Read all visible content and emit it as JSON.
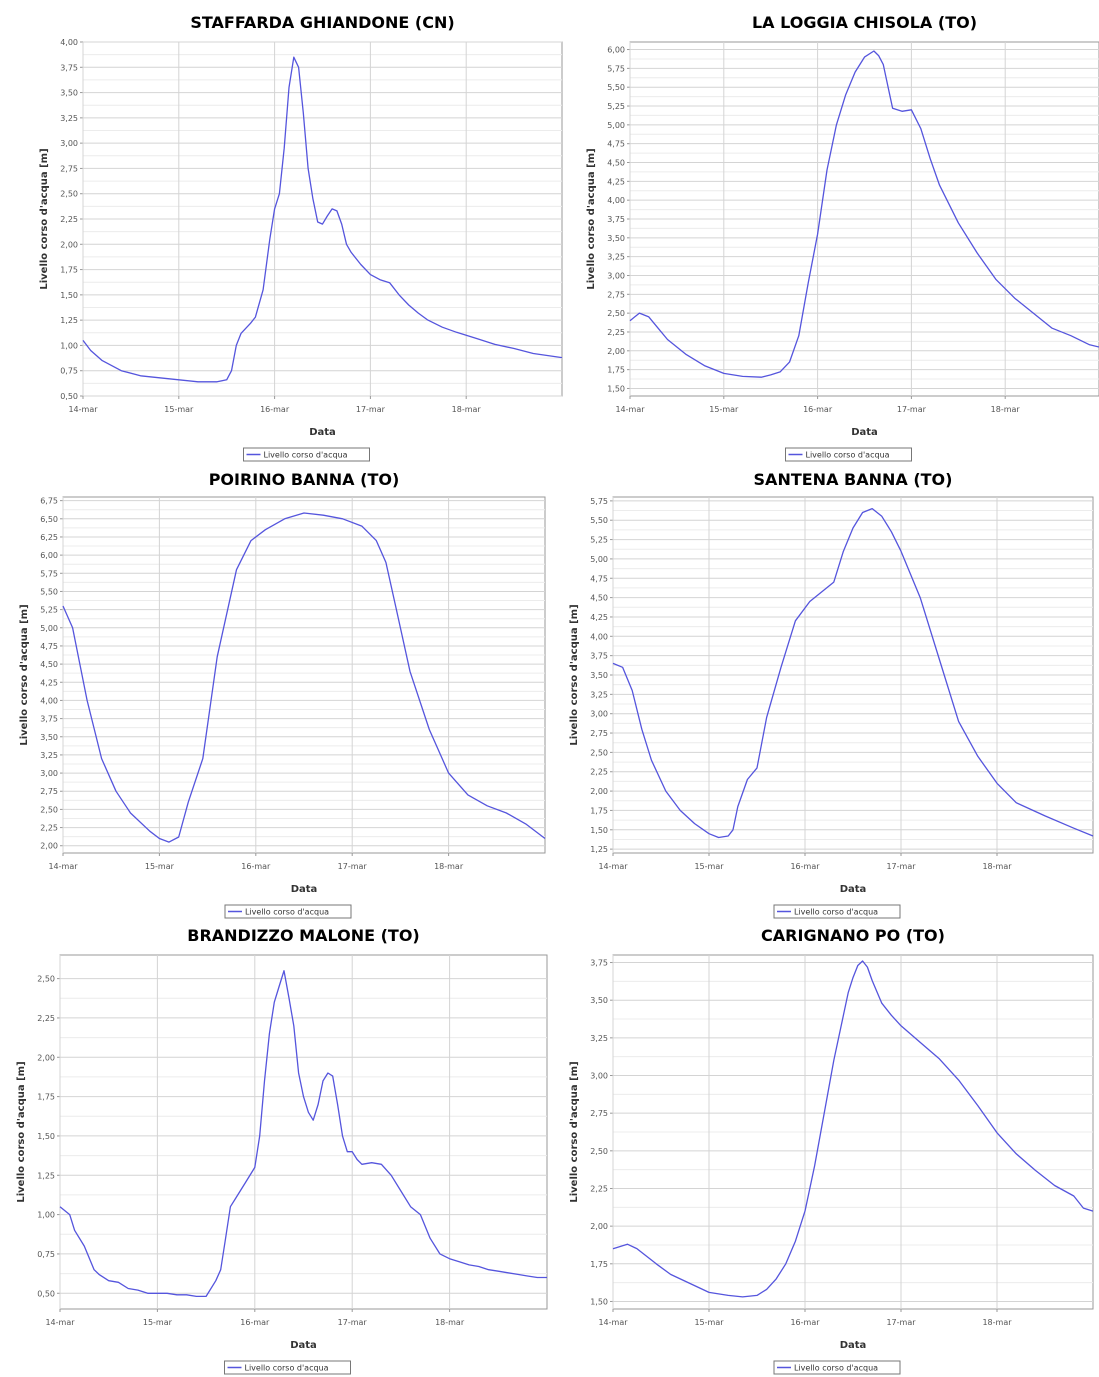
{
  "chart_data": [
    {
      "type": "line",
      "title": "STAFFARDA GHIANDONE (CN)",
      "xlabel": "Data",
      "ylabel": "Livello corso d'acqua [m]",
      "x_ticks": [
        "14-mar",
        "15-mar",
        "16-mar",
        "17-mar",
        "18-mar"
      ],
      "y_ticks": [
        "0,50",
        "0,75",
        "1,00",
        "1,25",
        "1,50",
        "1,75",
        "2,00",
        "2,25",
        "2,50",
        "2,75",
        "3,00",
        "3,25",
        "3,50",
        "3,75",
        "4,00"
      ],
      "ylim": [
        0.5,
        4.0
      ],
      "xlim": [
        0,
        5
      ],
      "grid": true,
      "legend_position": "bottom-center",
      "series": [
        {
          "name": "Livello corso d'acqua",
          "color": "#5555dd",
          "x": [
            0,
            0.08,
            0.2,
            0.4,
            0.6,
            0.8,
            1.0,
            1.2,
            1.4,
            1.5,
            1.55,
            1.6,
            1.65,
            1.75,
            1.8,
            1.88,
            1.95,
            2.0,
            2.05,
            2.1,
            2.15,
            2.2,
            2.25,
            2.3,
            2.35,
            2.4,
            2.45,
            2.5,
            2.55,
            2.6,
            2.65,
            2.7,
            2.75,
            2.8,
            2.9,
            3.0,
            3.1,
            3.2,
            3.3,
            3.4,
            3.5,
            3.6,
            3.75,
            3.9,
            4.1,
            4.3,
            4.5,
            4.7,
            5.0
          ],
          "y": [
            1.05,
            0.95,
            0.85,
            0.75,
            0.7,
            0.68,
            0.66,
            0.64,
            0.64,
            0.66,
            0.75,
            1.0,
            1.12,
            1.22,
            1.28,
            1.55,
            2.05,
            2.35,
            2.5,
            2.95,
            3.55,
            3.85,
            3.75,
            3.3,
            2.75,
            2.45,
            2.22,
            2.2,
            2.28,
            2.35,
            2.33,
            2.2,
            2.0,
            1.92,
            1.8,
            1.7,
            1.65,
            1.62,
            1.5,
            1.4,
            1.32,
            1.25,
            1.18,
            1.13,
            1.07,
            1.01,
            0.97,
            0.92,
            0.88
          ]
        }
      ]
    },
    {
      "type": "line",
      "title": "LA LOGGIA CHISOLA (TO)",
      "xlabel": "Data",
      "ylabel": "Livello corso d'acqua [m]",
      "x_ticks": [
        "14-mar",
        "15-mar",
        "16-mar",
        "17-mar",
        "18-mar"
      ],
      "y_ticks": [
        "1,50",
        "1,75",
        "2,00",
        "2,25",
        "2,50",
        "2,75",
        "3,00",
        "3,25",
        "3,50",
        "3,75",
        "4,00",
        "4,25",
        "4,50",
        "4,75",
        "5,00",
        "5,25",
        "5,50",
        "5,75",
        "6,00"
      ],
      "ylim": [
        1.4,
        6.1
      ],
      "xlim": [
        0,
        5
      ],
      "grid": true,
      "legend_position": "bottom-center",
      "series": [
        {
          "name": "Livello corso d'acqua",
          "color": "#5555dd",
          "x": [
            0,
            0.1,
            0.2,
            0.3,
            0.4,
            0.6,
            0.8,
            1.0,
            1.2,
            1.4,
            1.5,
            1.6,
            1.7,
            1.8,
            1.9,
            2.0,
            2.1,
            2.2,
            2.3,
            2.4,
            2.5,
            2.6,
            2.65,
            2.7,
            2.8,
            2.9,
            3.0,
            3.1,
            3.2,
            3.3,
            3.5,
            3.7,
            3.9,
            4.1,
            4.3,
            4.5,
            4.7,
            4.9,
            5.0
          ],
          "y": [
            2.4,
            2.5,
            2.45,
            2.3,
            2.15,
            1.95,
            1.8,
            1.7,
            1.66,
            1.65,
            1.68,
            1.72,
            1.85,
            2.2,
            2.9,
            3.55,
            4.4,
            5.0,
            5.4,
            5.7,
            5.9,
            5.98,
            5.92,
            5.8,
            5.22,
            5.18,
            5.2,
            4.95,
            4.55,
            4.2,
            3.7,
            3.3,
            2.95,
            2.7,
            2.5,
            2.3,
            2.2,
            2.08,
            2.05
          ]
        }
      ]
    },
    {
      "type": "line",
      "title": "POIRINO BANNA (TO)",
      "xlabel": "Data",
      "ylabel": "Livello corso d'acqua [m]",
      "x_ticks": [
        "14-mar",
        "15-mar",
        "16-mar",
        "17-mar",
        "18-mar"
      ],
      "y_ticks": [
        "2,00",
        "2,25",
        "2,50",
        "2,75",
        "3,00",
        "3,25",
        "3,50",
        "3,75",
        "4,00",
        "4,25",
        "4,50",
        "4,75",
        "5,00",
        "5,25",
        "5,50",
        "5,75",
        "6,00",
        "6,25",
        "6,50",
        "6,75"
      ],
      "ylim": [
        1.9,
        6.8
      ],
      "xlim": [
        0,
        5
      ],
      "grid": true,
      "legend_position": "bottom-center",
      "series": [
        {
          "name": "Livello corso d'acqua",
          "color": "#5555dd",
          "x": [
            0,
            0.1,
            0.25,
            0.4,
            0.55,
            0.7,
            0.9,
            1.0,
            1.1,
            1.2,
            1.3,
            1.45,
            1.6,
            1.8,
            1.95,
            2.1,
            2.3,
            2.5,
            2.7,
            2.9,
            3.1,
            3.25,
            3.35,
            3.45,
            3.6,
            3.8,
            4.0,
            4.2,
            4.4,
            4.6,
            4.8,
            5.0
          ],
          "y": [
            5.3,
            5.0,
            4.0,
            3.2,
            2.75,
            2.45,
            2.2,
            2.1,
            2.05,
            2.12,
            2.6,
            3.2,
            4.6,
            5.8,
            6.2,
            6.35,
            6.5,
            6.58,
            6.55,
            6.5,
            6.4,
            6.2,
            5.9,
            5.3,
            4.4,
            3.6,
            3.0,
            2.7,
            2.55,
            2.45,
            2.3,
            2.1
          ]
        }
      ]
    },
    {
      "type": "line",
      "title": "SANTENA BANNA (TO)",
      "xlabel": "Data",
      "ylabel": "Livello corso d'acqua [m]",
      "x_ticks": [
        "14-mar",
        "15-mar",
        "16-mar",
        "17-mar",
        "18-mar"
      ],
      "y_ticks": [
        "1,25",
        "1,50",
        "1,75",
        "2,00",
        "2,25",
        "2,50",
        "2,75",
        "3,00",
        "3,25",
        "3,50",
        "3,75",
        "4,00",
        "4,25",
        "4,50",
        "4,75",
        "5,00",
        "5,25",
        "5,50",
        "5,75"
      ],
      "ylim": [
        1.2,
        5.8
      ],
      "xlim": [
        0,
        5
      ],
      "grid": true,
      "legend_position": "bottom-center",
      "series": [
        {
          "name": "Livello corso d'acqua",
          "color": "#5555dd",
          "x": [
            0,
            0.1,
            0.2,
            0.3,
            0.4,
            0.55,
            0.7,
            0.85,
            1.0,
            1.1,
            1.2,
            1.25,
            1.3,
            1.4,
            1.5,
            1.6,
            1.75,
            1.9,
            2.05,
            2.2,
            2.3,
            2.4,
            2.5,
            2.6,
            2.7,
            2.8,
            2.9,
            3.0,
            3.2,
            3.4,
            3.6,
            3.8,
            4.0,
            4.2,
            4.5,
            4.8,
            5.0
          ],
          "y": [
            3.65,
            3.6,
            3.3,
            2.8,
            2.4,
            2.0,
            1.75,
            1.58,
            1.45,
            1.4,
            1.42,
            1.5,
            1.8,
            2.15,
            2.3,
            2.95,
            3.6,
            4.2,
            4.45,
            4.6,
            4.7,
            5.1,
            5.4,
            5.6,
            5.65,
            5.55,
            5.35,
            5.1,
            4.5,
            3.7,
            2.9,
            2.45,
            2.1,
            1.85,
            1.68,
            1.52,
            1.42
          ]
        }
      ]
    },
    {
      "type": "line",
      "title": "BRANDIZZO MALONE (TO)",
      "xlabel": "Data",
      "ylabel": "Livello corso d'acqua [m]",
      "x_ticks": [
        "14-mar",
        "15-mar",
        "16-mar",
        "17-mar",
        "18-mar"
      ],
      "y_ticks": [
        "0,50",
        "0,75",
        "1,00",
        "1,25",
        "1,50",
        "1,75",
        "2,00",
        "2,25",
        "2,50"
      ],
      "ylim": [
        0.4,
        2.65
      ],
      "xlim": [
        0,
        5
      ],
      "grid": true,
      "legend_position": "bottom-center",
      "series": [
        {
          "name": "Livello corso d'acqua",
          "color": "#5555dd",
          "x": [
            0,
            0.1,
            0.15,
            0.25,
            0.35,
            0.4,
            0.5,
            0.6,
            0.7,
            0.8,
            0.9,
            1.0,
            1.1,
            1.2,
            1.3,
            1.4,
            1.5,
            1.6,
            1.65,
            1.7,
            1.75,
            1.8,
            1.9,
            2.0,
            2.05,
            2.1,
            2.15,
            2.2,
            2.25,
            2.3,
            2.35,
            2.4,
            2.45,
            2.5,
            2.55,
            2.6,
            2.65,
            2.7,
            2.75,
            2.8,
            2.85,
            2.9,
            2.95,
            3.0,
            3.05,
            3.1,
            3.2,
            3.3,
            3.4,
            3.5,
            3.6,
            3.7,
            3.8,
            3.9,
            4.0,
            4.1,
            4.2,
            4.3,
            4.4,
            4.5,
            4.6,
            4.7,
            4.8,
            4.9,
            5.0
          ],
          "y": [
            1.05,
            1.0,
            0.9,
            0.8,
            0.65,
            0.62,
            0.58,
            0.57,
            0.53,
            0.52,
            0.5,
            0.5,
            0.5,
            0.49,
            0.49,
            0.48,
            0.48,
            0.58,
            0.65,
            0.85,
            1.05,
            1.1,
            1.2,
            1.3,
            1.5,
            1.85,
            2.15,
            2.35,
            2.45,
            2.55,
            2.38,
            2.2,
            1.9,
            1.75,
            1.65,
            1.6,
            1.7,
            1.85,
            1.9,
            1.88,
            1.7,
            1.5,
            1.4,
            1.4,
            1.35,
            1.32,
            1.33,
            1.32,
            1.25,
            1.15,
            1.05,
            1.0,
            0.85,
            0.75,
            0.72,
            0.7,
            0.68,
            0.67,
            0.65,
            0.64,
            0.63,
            0.62,
            0.61,
            0.6,
            0.6
          ]
        }
      ]
    },
    {
      "type": "line",
      "title": "CARIGNANO PO (TO)",
      "xlabel": "Data",
      "ylabel": "Livello corso d'acqua [m]",
      "x_ticks": [
        "14-mar",
        "15-mar",
        "16-mar",
        "17-mar",
        "18-mar"
      ],
      "y_ticks": [
        "1,50",
        "1,75",
        "2,00",
        "2,25",
        "2,50",
        "2,75",
        "3,00",
        "3,25",
        "3,50",
        "3,75"
      ],
      "ylim": [
        1.45,
        3.8
      ],
      "xlim": [
        0,
        5
      ],
      "grid": true,
      "legend_position": "bottom-center",
      "series": [
        {
          "name": "Livello corso d'acqua",
          "color": "#5555dd",
          "x": [
            0,
            0.05,
            0.15,
            0.25,
            0.35,
            0.45,
            0.6,
            0.8,
            1.0,
            1.2,
            1.35,
            1.5,
            1.6,
            1.7,
            1.8,
            1.9,
            2.0,
            2.1,
            2.2,
            2.3,
            2.4,
            2.45,
            2.5,
            2.55,
            2.6,
            2.65,
            2.7,
            2.8,
            2.9,
            3.0,
            3.2,
            3.4,
            3.6,
            3.8,
            4.0,
            4.2,
            4.4,
            4.6,
            4.8,
            4.9,
            5.0
          ],
          "y": [
            1.85,
            1.86,
            1.88,
            1.85,
            1.8,
            1.75,
            1.68,
            1.62,
            1.56,
            1.54,
            1.53,
            1.54,
            1.58,
            1.65,
            1.75,
            1.9,
            2.1,
            2.4,
            2.75,
            3.1,
            3.4,
            3.55,
            3.65,
            3.73,
            3.76,
            3.72,
            3.63,
            3.48,
            3.4,
            3.33,
            3.22,
            3.11,
            2.97,
            2.8,
            2.62,
            2.48,
            2.37,
            2.27,
            2.2,
            2.12,
            2.1
          ]
        }
      ]
    }
  ]
}
